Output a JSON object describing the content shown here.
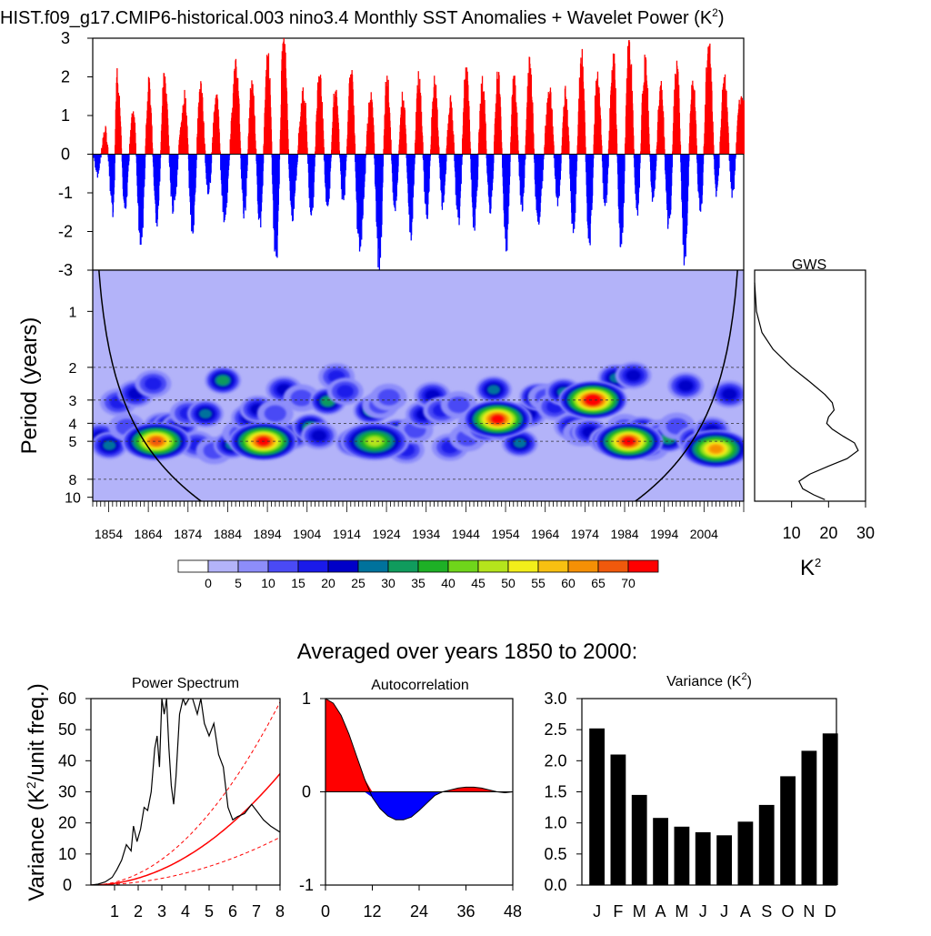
{
  "page_title": "HIST.f09_g17.CMIP6-historical.003 nino3.4 Monthly SST Anomalies + Wavelet Power (K",
  "page_title_sup": "2",
  "page_title_end": ")",
  "colors": {
    "positive": "#ff0000",
    "negative": "#0000ff",
    "bars": "#000000",
    "theory": "#ff0000"
  },
  "chart_data": [
    {
      "id": "anomaly_series",
      "type": "bar",
      "yticks": [
        3,
        2,
        1,
        0,
        -1,
        -2,
        -3
      ],
      "ylim": [
        -3,
        3
      ],
      "xlim": [
        1850,
        2014
      ],
      "note_series": "monthly anomalies, K; envelope approximated",
      "peaks": [
        {
          "x": 1851,
          "y": -0.5
        },
        {
          "x": 1853,
          "y": 0.6
        },
        {
          "x": 1855,
          "y": -1.5
        },
        {
          "x": 1856,
          "y": 2.2
        },
        {
          "x": 1858,
          "y": -1.4
        },
        {
          "x": 1860,
          "y": 1.2
        },
        {
          "x": 1862,
          "y": -2.4
        },
        {
          "x": 1864,
          "y": 1.8
        },
        {
          "x": 1866,
          "y": -1.8
        },
        {
          "x": 1868,
          "y": 2.1
        },
        {
          "x": 1870,
          "y": -1.4
        },
        {
          "x": 1873,
          "y": 1.5
        },
        {
          "x": 1875,
          "y": -2.0
        },
        {
          "x": 1877,
          "y": 1.8
        },
        {
          "x": 1879,
          "y": -1.0
        },
        {
          "x": 1881,
          "y": 1.6
        },
        {
          "x": 1883,
          "y": -1.7
        },
        {
          "x": 1886,
          "y": 2.3
        },
        {
          "x": 1888,
          "y": -1.5
        },
        {
          "x": 1890,
          "y": 1.9
        },
        {
          "x": 1892,
          "y": -1.8
        },
        {
          "x": 1894,
          "y": 2.6
        },
        {
          "x": 1896,
          "y": -2.9
        },
        {
          "x": 1898,
          "y": 3.1
        },
        {
          "x": 1900,
          "y": -1.6
        },
        {
          "x": 1903,
          "y": 1.6
        },
        {
          "x": 1905,
          "y": -1.6
        },
        {
          "x": 1907,
          "y": 2.2
        },
        {
          "x": 1909,
          "y": -1.4
        },
        {
          "x": 1911,
          "y": 1.7
        },
        {
          "x": 1913,
          "y": -1.2
        },
        {
          "x": 1915,
          "y": 2.2
        },
        {
          "x": 1917,
          "y": -2.4
        },
        {
          "x": 1920,
          "y": 1.6
        },
        {
          "x": 1922,
          "y": -2.9
        },
        {
          "x": 1924,
          "y": 2.0
        },
        {
          "x": 1926,
          "y": -1.4
        },
        {
          "x": 1928,
          "y": 1.5
        },
        {
          "x": 1930,
          "y": -2.0
        },
        {
          "x": 1932,
          "y": 2.0
        },
        {
          "x": 1934,
          "y": -1.6
        },
        {
          "x": 1936,
          "y": 1.9
        },
        {
          "x": 1938,
          "y": -1.3
        },
        {
          "x": 1940,
          "y": 1.4
        },
        {
          "x": 1942,
          "y": -1.7
        },
        {
          "x": 1944,
          "y": 2.3
        },
        {
          "x": 1946,
          "y": -2.0
        },
        {
          "x": 1948,
          "y": 1.9
        },
        {
          "x": 1950,
          "y": -1.5
        },
        {
          "x": 1952,
          "y": 2.1
        },
        {
          "x": 1954,
          "y": -2.4
        },
        {
          "x": 1956,
          "y": 2.0
        },
        {
          "x": 1958,
          "y": -1.4
        },
        {
          "x": 1960,
          "y": 2.3
        },
        {
          "x": 1962,
          "y": -1.8
        },
        {
          "x": 1965,
          "y": 1.7
        },
        {
          "x": 1967,
          "y": -1.3
        },
        {
          "x": 1969,
          "y": 1.6
        },
        {
          "x": 1971,
          "y": -2.0
        },
        {
          "x": 1973,
          "y": 2.6
        },
        {
          "x": 1975,
          "y": -2.3
        },
        {
          "x": 1977,
          "y": 2.2
        },
        {
          "x": 1979,
          "y": -1.4
        },
        {
          "x": 1981,
          "y": 2.5
        },
        {
          "x": 1983,
          "y": -2.5
        },
        {
          "x": 1985,
          "y": 3.0
        },
        {
          "x": 1987,
          "y": -1.5
        },
        {
          "x": 1989,
          "y": 2.4
        },
        {
          "x": 1991,
          "y": -1.2
        },
        {
          "x": 1993,
          "y": 1.8
        },
        {
          "x": 1995,
          "y": -1.9
        },
        {
          "x": 1997,
          "y": 2.4
        },
        {
          "x": 1999,
          "y": -2.8
        },
        {
          "x": 2001,
          "y": 2.0
        },
        {
          "x": 2003,
          "y": -1.6
        },
        {
          "x": 2005,
          "y": 3.0
        },
        {
          "x": 2007,
          "y": -1.0
        },
        {
          "x": 2009,
          "y": 2.0
        },
        {
          "x": 2011,
          "y": -1.0
        },
        {
          "x": 2013,
          "y": 1.5
        }
      ]
    },
    {
      "id": "wavelet",
      "type": "heatmap",
      "ylabel": "Period (years)",
      "yticks": [
        1,
        2,
        3,
        4,
        5,
        8,
        10
      ],
      "xticks": [
        1854,
        1864,
        1874,
        1884,
        1894,
        1904,
        1914,
        1924,
        1934,
        1944,
        1954,
        1964,
        1974,
        1984,
        1994,
        2004
      ],
      "xlim": [
        1850,
        2014
      ],
      "colorbar_ticks": [
        "0",
        "5",
        "10",
        "15",
        "20",
        "25",
        "30",
        "35",
        "40",
        "45",
        "50",
        "55",
        "60",
        "65",
        "70"
      ],
      "colorbar_colors": [
        "#ffffff",
        "#b3b3f9",
        "#8d8dfa",
        "#4a4af5",
        "#1a1aea",
        "#0000c8",
        "#00729c",
        "#109b5d",
        "#1eb026",
        "#6fd51b",
        "#b5e41c",
        "#f2ee1a",
        "#f8c011",
        "#f59005",
        "#f0590c",
        "#ff0000"
      ],
      "hotspots": [
        {
          "year": 1866,
          "period": 5.0,
          "power": 65
        },
        {
          "year": 1893,
          "period": 5.0,
          "power": 70
        },
        {
          "year": 1921,
          "period": 5.0,
          "power": 45
        },
        {
          "year": 1952,
          "period": 3.8,
          "power": 70
        },
        {
          "year": 1976,
          "period": 3.0,
          "power": 75
        },
        {
          "year": 1985,
          "period": 5.0,
          "power": 70
        },
        {
          "year": 2007,
          "period": 5.5,
          "power": 60
        }
      ]
    },
    {
      "id": "gws",
      "type": "line",
      "title": "GWS",
      "xlabel": "K",
      "xlabel_sup": "2",
      "xticks": [
        10,
        20,
        30
      ],
      "xlim": [
        0,
        30
      ],
      "x": [
        0.0,
        0.5,
        2.0,
        5.0,
        10.0,
        15.0,
        19.0,
        21.0,
        21.5,
        20.0,
        19.5,
        21.0,
        24.0,
        27.0,
        28.0,
        25.0,
        20.0,
        15.0,
        12.0,
        13.0,
        16.0,
        19.0
      ],
      "period": [
        0.7,
        1.0,
        1.3,
        1.6,
        2.0,
        2.4,
        2.8,
        3.1,
        3.4,
        3.7,
        4.0,
        4.3,
        4.7,
        5.1,
        5.6,
        6.2,
        6.8,
        7.5,
        8.2,
        9.0,
        9.7,
        10.3
      ]
    },
    {
      "id": "power_spectrum",
      "type": "line",
      "title": "Power Spectrum",
      "ylabel_pre": "Variance (K",
      "ylabel_sup": "2",
      "ylabel_post": "/unit freq.)",
      "xlim": [
        0,
        8
      ],
      "ylim": [
        0,
        60
      ],
      "xticks": [
        1,
        2,
        3,
        4,
        5,
        6,
        7,
        8
      ],
      "yticks": [
        0,
        10,
        20,
        30,
        40,
        50,
        60
      ],
      "x": [
        0.0,
        0.3,
        0.6,
        0.9,
        1.1,
        1.3,
        1.5,
        1.7,
        1.8,
        1.95,
        2.1,
        2.25,
        2.4,
        2.55,
        2.7,
        2.8,
        2.9,
        3.0,
        3.1,
        3.2,
        3.3,
        3.4,
        3.5,
        3.6,
        3.75,
        3.9,
        4.0,
        4.15,
        4.3,
        4.5,
        4.65,
        4.8,
        5.0,
        5.2,
        5.4,
        5.6,
        5.8,
        6.0,
        6.2,
        6.5,
        6.8,
        7.0,
        7.3,
        7.6,
        8.0
      ],
      "y": [
        0.0,
        0.3,
        1.0,
        2.5,
        5.0,
        8.0,
        13.0,
        11.0,
        19.0,
        14.0,
        18.0,
        25.0,
        24.0,
        30.0,
        44.0,
        48.0,
        38.0,
        60.0,
        55.0,
        60.0,
        44.0,
        32.0,
        26.0,
        35.0,
        55.0,
        60.0,
        58.0,
        60.0,
        60.0,
        55.0,
        60.0,
        52.0,
        48.0,
        52.0,
        42.0,
        38.0,
        25.0,
        21.0,
        22.0,
        23.0,
        26.0,
        24.0,
        21.0,
        19.0,
        17.0
      ],
      "theory": {
        "coef": 0.56
      },
      "ci_upper": {
        "coef": 0.92
      },
      "ci_lower": {
        "coef": 0.24
      }
    },
    {
      "id": "autocorrelation",
      "type": "area",
      "title": "Autocorrelation",
      "xlim": [
        0,
        48
      ],
      "ylim": [
        -1,
        1
      ],
      "xticks": [
        0,
        12,
        24,
        36,
        48
      ],
      "yticks": [
        -1,
        0,
        1
      ],
      "x": [
        0,
        2,
        4,
        6,
        8,
        10,
        12,
        14,
        16,
        18,
        20,
        22,
        24,
        26,
        28,
        30,
        32,
        34,
        36,
        38,
        40,
        42,
        44,
        46,
        48
      ],
      "y": [
        1.0,
        0.95,
        0.82,
        0.62,
        0.38,
        0.14,
        -0.06,
        -0.18,
        -0.26,
        -0.3,
        -0.3,
        -0.27,
        -0.2,
        -0.12,
        -0.04,
        0.0,
        0.02,
        0.04,
        0.05,
        0.05,
        0.04,
        0.02,
        0.0,
        -0.01,
        0.0
      ]
    },
    {
      "id": "monthly_variance",
      "type": "bar",
      "title_pre": "Variance (K",
      "title_sup": "2",
      "title_post": ")",
      "categories": [
        "J",
        "F",
        "M",
        "A",
        "M",
        "J",
        "J",
        "A",
        "S",
        "O",
        "N",
        "D"
      ],
      "values": [
        2.52,
        2.1,
        1.45,
        1.08,
        0.94,
        0.85,
        0.8,
        1.02,
        1.29,
        1.75,
        2.16,
        2.44
      ],
      "ylim": [
        0,
        3.0
      ],
      "yticks": [
        "0.0",
        "0.5",
        "1.0",
        "1.5",
        "2.0",
        "2.5",
        "3.0"
      ]
    }
  ],
  "bottom_heading": "Averaged over years 1850 to 2000:"
}
